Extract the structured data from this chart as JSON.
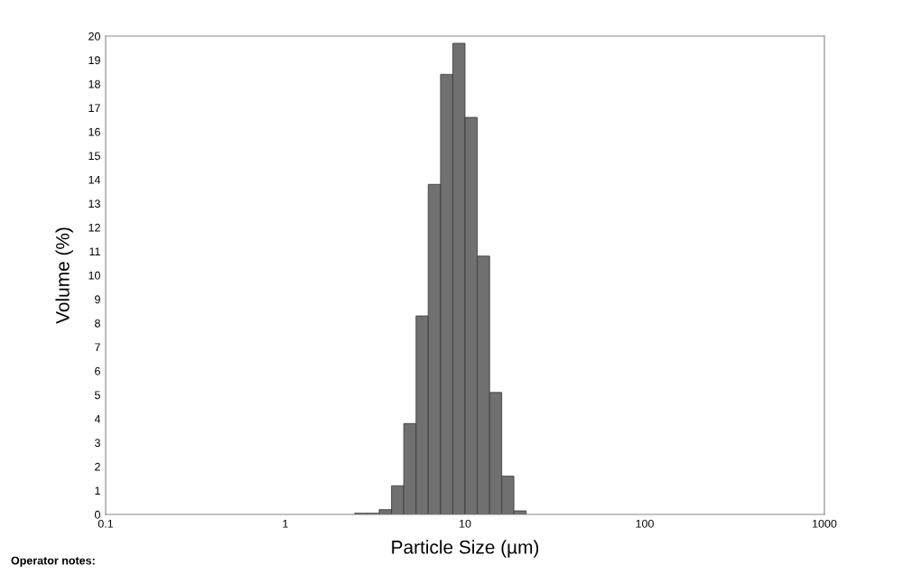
{
  "chart_data": {
    "type": "histogram",
    "xlabel": "Particle Size (µm)",
    "ylabel": "Volume (%)",
    "bins": [
      2.43,
      2.85,
      3.33,
      3.9,
      4.56,
      5.34,
      6.24,
      7.31,
      8.55,
      10,
      11.7,
      13.7,
      16,
      18.7,
      21.9
    ],
    "values": [
      0.05,
      0.05,
      0.2,
      1.2,
      3.8,
      8.3,
      13.8,
      18.4,
      19.7,
      16.6,
      10.8,
      5.1,
      1.6,
      0.15
    ],
    "color": "#707070",
    "log": "x",
    "xlim": [
      0.1,
      1000
    ],
    "xticks": [
      0.1,
      1,
      10,
      100,
      1000
    ],
    "ylim": [
      0,
      20
    ],
    "yticks": [
      0,
      1,
      2,
      3,
      4,
      5,
      6,
      7,
      8,
      9,
      10,
      11,
      12,
      13,
      14,
      15,
      16,
      17,
      18,
      19,
      20
    ],
    "grid": false,
    "annotations": [
      "Operator notes:"
    ]
  }
}
